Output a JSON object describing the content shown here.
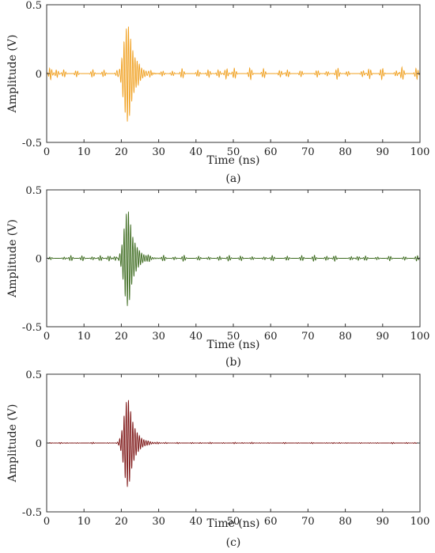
{
  "chart_data": [
    {
      "type": "line",
      "caption": "(a)",
      "xlabel": "Time (ns)",
      "ylabel": "Amplitude (V)",
      "xlim": [
        0,
        100
      ],
      "ylim": [
        -0.5,
        0.5
      ],
      "xticks": [
        0,
        10,
        20,
        30,
        40,
        50,
        60,
        70,
        80,
        90,
        100
      ],
      "yticks": [
        0.5,
        0,
        -0.5
      ],
      "grid": false,
      "series": [
        {
          "color": "#f0a020",
          "description": "noisy pulse: main burst peaking near 21-22 ns, residual ringing ±0.04 across record",
          "pulse_center_ns": 22.0,
          "peak_amplitude": 0.35,
          "carrier_freq_ghz": 1.7,
          "noise_amplitude": 0.04,
          "x": [
            0,
            10,
            12,
            15,
            18,
            19,
            20,
            20.5,
            21,
            21.5,
            22,
            22.5,
            23,
            23.5,
            24,
            25,
            26,
            28,
            30,
            40,
            50,
            60,
            70,
            80,
            90,
            97,
            100
          ],
          "y": [
            0,
            0.02,
            0.03,
            0.03,
            0.06,
            0.12,
            0.2,
            -0.25,
            0.34,
            -0.35,
            0.3,
            -0.28,
            0.22,
            -0.2,
            0.15,
            0.1,
            0.06,
            0.03,
            0.02,
            0.03,
            0.03,
            0.03,
            0.03,
            0.03,
            0.03,
            0.05,
            0.02
          ]
        }
      ]
    },
    {
      "type": "line",
      "caption": "(b)",
      "xlabel": "Time (ns)",
      "ylabel": "Amplitude (V)",
      "xlim": [
        0,
        100
      ],
      "ylim": [
        -0.5,
        0.5
      ],
      "xticks": [
        0,
        10,
        20,
        30,
        40,
        50,
        60,
        70,
        80,
        90,
        100
      ],
      "yticks": [
        0.5,
        0,
        -0.5
      ],
      "grid": false,
      "series": [
        {
          "color": "#3d6b1f",
          "description": "partially denoised pulse",
          "pulse_center_ns": 22.0,
          "peak_amplitude": 0.35,
          "carrier_freq_ghz": 1.7,
          "noise_amplitude": 0.02,
          "x": [
            0,
            10,
            12,
            15,
            18,
            19,
            20,
            20.5,
            21,
            21.5,
            22,
            22.5,
            23,
            23.5,
            24,
            25,
            26,
            28,
            30,
            40,
            50,
            60,
            70,
            80,
            90,
            97,
            100
          ],
          "y": [
            0,
            0.01,
            0.02,
            0.02,
            0.05,
            0.1,
            0.18,
            -0.25,
            0.34,
            -0.35,
            0.3,
            -0.27,
            0.22,
            -0.19,
            0.14,
            0.09,
            0.05,
            0.02,
            0.01,
            0.02,
            0.02,
            0.02,
            0.02,
            0.02,
            0.02,
            0.03,
            0.01
          ]
        }
      ]
    },
    {
      "type": "line",
      "caption": "(c)",
      "xlabel": "Time (ns)",
      "ylabel": "Amplitude (V)",
      "xlim": [
        0,
        100
      ],
      "ylim": [
        -0.5,
        0.5
      ],
      "xticks": [
        0,
        10,
        20,
        30,
        40,
        50,
        60,
        70,
        80,
        90,
        100
      ],
      "yticks": [
        0.5,
        0,
        -0.5
      ],
      "grid": false,
      "series": [
        {
          "color": "#7a1010",
          "description": "denoised pulse: clean burst near 21-23 ns, near-flat baseline with tiny blips",
          "pulse_center_ns": 22.0,
          "peak_amplitude": 0.32,
          "carrier_freq_ghz": 1.7,
          "noise_amplitude": 0.005,
          "x": [
            0,
            10,
            15,
            18,
            19,
            20,
            20.5,
            21,
            21.5,
            22,
            22.5,
            23,
            23.5,
            24,
            25,
            26,
            28,
            30,
            40,
            50,
            60,
            67,
            85,
            95,
            100
          ],
          "y": [
            0,
            0,
            0.01,
            0.03,
            0.07,
            0.15,
            -0.2,
            0.32,
            -0.3,
            0.28,
            -0.25,
            0.2,
            -0.17,
            0.12,
            0.07,
            0.04,
            0.02,
            0.01,
            0,
            0.005,
            0.005,
            0.015,
            0.01,
            0.02,
            0
          ]
        }
      ]
    }
  ]
}
